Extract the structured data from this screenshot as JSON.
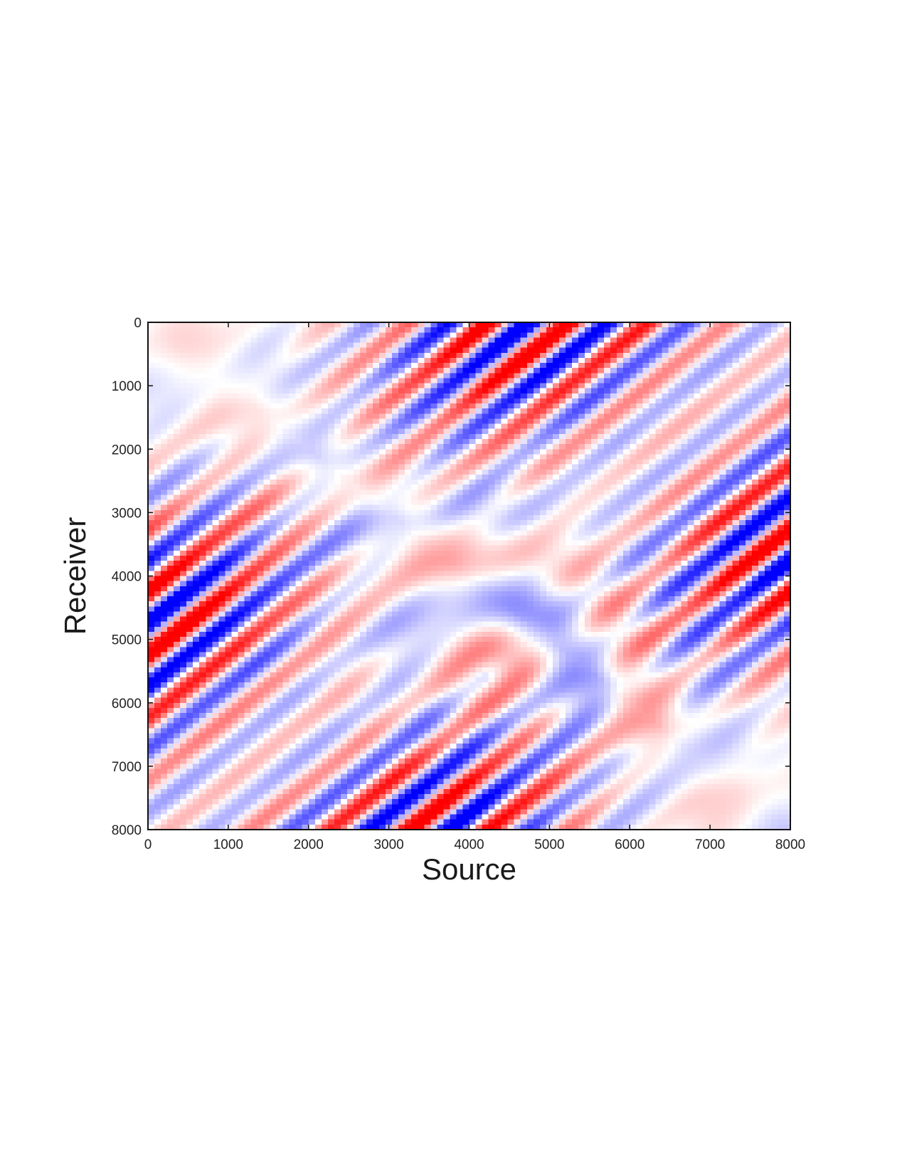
{
  "chart_data": {
    "type": "heatmap",
    "xlabel": "Source",
    "ylabel": "Receiver",
    "xlim": [
      0,
      8000
    ],
    "ylim": [
      0,
      8000
    ],
    "y_axis_inverted": true,
    "x_ticks": [
      0,
      1000,
      2000,
      3000,
      4000,
      5000,
      6000,
      7000,
      8000
    ],
    "y_ticks": [
      0,
      1000,
      2000,
      3000,
      4000,
      5000,
      6000,
      7000,
      8000
    ],
    "x_tick_labels": [
      "0",
      "1000",
      "2000",
      "3000",
      "4000",
      "5000",
      "6000",
      "7000",
      "8000"
    ],
    "y_tick_labels": [
      "0",
      "1000",
      "2000",
      "3000",
      "4000",
      "5000",
      "6000",
      "7000",
      "8000"
    ],
    "colormap": {
      "negative": "#0000ff",
      "zero": "#ffffff",
      "positive": "#ff0000"
    },
    "value_range": [
      -1,
      1
    ],
    "grid": false,
    "legend": "none",
    "pattern": {
      "description": "oscillating diagonal stripes parallel to source+receiver = const, strongest near top-right and bottom-left corners, weaker curved patches near the main diagonal",
      "stripe_direction": "source + receiver",
      "strong_band_upper": {
        "center_sum": 11600,
        "half_width": 2200
      },
      "strong_band_lower": {
        "center_sum": 4800,
        "half_width": 2400
      },
      "stripe_period": 1000,
      "grid_resolution": 100
    }
  }
}
